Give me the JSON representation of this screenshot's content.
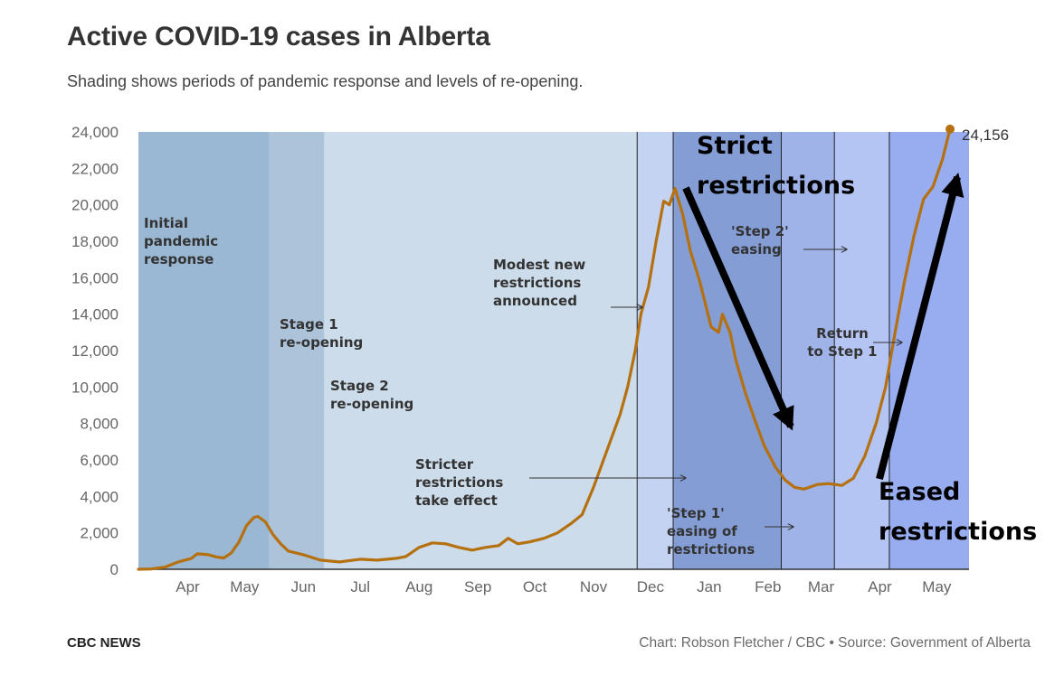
{
  "header": {
    "title": "Active COVID-19 cases in Alberta",
    "subtitle": "Shading shows periods of pandemic response and levels of re-opening."
  },
  "footer": {
    "brand": "CBC NEWS",
    "credit": "Chart: Robson Fletcher / CBC • Source: Government of Alberta"
  },
  "chart_data": {
    "type": "line",
    "title": "Active COVID-19 cases in Alberta",
    "subtitle": "Shading shows periods of pandemic response and levels of re-opening.",
    "xlabel": "",
    "ylabel": "",
    "ylim": [
      0,
      24000
    ],
    "xlim": [
      "2020-03-06",
      "2021-05-18"
    ],
    "grid": false,
    "y_ticks": [
      {
        "value": 0,
        "label": "0"
      },
      {
        "value": 2000,
        "label": "2,000"
      },
      {
        "value": 4000,
        "label": "4,000"
      },
      {
        "value": 6000,
        "label": "6,000"
      },
      {
        "value": 8000,
        "label": "8,000"
      },
      {
        "value": 10000,
        "label": "10,000"
      },
      {
        "value": 12000,
        "label": "12,000"
      },
      {
        "value": 14000,
        "label": "14,000"
      },
      {
        "value": 16000,
        "label": "16,000"
      },
      {
        "value": 18000,
        "label": "18,000"
      },
      {
        "value": 20000,
        "label": "20,000"
      },
      {
        "value": 22000,
        "label": "22,000"
      },
      {
        "value": 24000,
        "label": "24,000"
      }
    ],
    "x_ticks": [
      {
        "date": "2020-04-01",
        "label": "Apr"
      },
      {
        "date": "2020-05-01",
        "label": "May"
      },
      {
        "date": "2020-06-01",
        "label": "Jun"
      },
      {
        "date": "2020-07-01",
        "label": "Jul"
      },
      {
        "date": "2020-08-01",
        "label": "Aug"
      },
      {
        "date": "2020-09-01",
        "label": "Sep"
      },
      {
        "date": "2020-10-01",
        "label": "Oct"
      },
      {
        "date": "2020-11-01",
        "label": "Nov"
      },
      {
        "date": "2020-12-01",
        "label": "Dec"
      },
      {
        "date": "2021-01-01",
        "label": "Jan"
      },
      {
        "date": "2021-02-01",
        "label": "Feb"
      },
      {
        "date": "2021-03-01",
        "label": "Mar"
      },
      {
        "date": "2021-04-01",
        "label": "Apr"
      },
      {
        "date": "2021-05-01",
        "label": "May"
      }
    ],
    "periods": [
      {
        "start": "2020-03-06",
        "end": "2020-05-14",
        "color": "#9ab8d3"
      },
      {
        "start": "2020-05-14",
        "end": "2020-06-12",
        "color": "#adc3da"
      },
      {
        "start": "2020-06-12",
        "end": "2020-11-24",
        "color": "#cddcea"
      },
      {
        "start": "2020-11-24",
        "end": "2020-12-13",
        "color": "#c5d3f2"
      },
      {
        "start": "2020-12-13",
        "end": "2021-02-08",
        "color": "#859dd5"
      },
      {
        "start": "2021-02-08",
        "end": "2021-03-08",
        "color": "#a0b3e8"
      },
      {
        "start": "2021-03-08",
        "end": "2021-04-06",
        "color": "#b4c4f3"
      },
      {
        "start": "2021-04-06",
        "end": "2021-05-18",
        "color": "#98acf0"
      }
    ],
    "period_lines": [
      "2020-11-24",
      "2020-12-13",
      "2021-02-08",
      "2021-03-08",
      "2021-04-06"
    ],
    "series": [
      {
        "color": "#b5700f",
        "points": [
          [
            "2020-03-06",
            0
          ],
          [
            "2020-03-13",
            20
          ],
          [
            "2020-03-20",
            120
          ],
          [
            "2020-03-27",
            400
          ],
          [
            "2020-04-03",
            600
          ],
          [
            "2020-04-06",
            850
          ],
          [
            "2020-04-12",
            800
          ],
          [
            "2020-04-16",
            680
          ],
          [
            "2020-04-20",
            620
          ],
          [
            "2020-04-24",
            900
          ],
          [
            "2020-04-28",
            1500
          ],
          [
            "2020-05-02",
            2400
          ],
          [
            "2020-05-06",
            2850
          ],
          [
            "2020-05-08",
            2900
          ],
          [
            "2020-05-12",
            2600
          ],
          [
            "2020-05-16",
            1900
          ],
          [
            "2020-05-20",
            1400
          ],
          [
            "2020-05-24",
            1000
          ],
          [
            "2020-06-01",
            800
          ],
          [
            "2020-06-10",
            500
          ],
          [
            "2020-06-20",
            400
          ],
          [
            "2020-07-01",
            550
          ],
          [
            "2020-07-10",
            500
          ],
          [
            "2020-07-20",
            600
          ],
          [
            "2020-07-25",
            700
          ],
          [
            "2020-08-01",
            1200
          ],
          [
            "2020-08-08",
            1450
          ],
          [
            "2020-08-15",
            1400
          ],
          [
            "2020-08-22",
            1200
          ],
          [
            "2020-08-29",
            1050
          ],
          [
            "2020-09-05",
            1200
          ],
          [
            "2020-09-12",
            1300
          ],
          [
            "2020-09-17",
            1700
          ],
          [
            "2020-09-22",
            1400
          ],
          [
            "2020-09-28",
            1500
          ],
          [
            "2020-10-06",
            1700
          ],
          [
            "2020-10-13",
            2000
          ],
          [
            "2020-10-20",
            2500
          ],
          [
            "2020-10-26",
            3000
          ],
          [
            "2020-11-01",
            4500
          ],
          [
            "2020-11-08",
            6500
          ],
          [
            "2020-11-15",
            8500
          ],
          [
            "2020-11-19",
            10000
          ],
          [
            "2020-11-23",
            12000
          ],
          [
            "2020-11-26",
            14000
          ],
          [
            "2020-11-30",
            15500
          ],
          [
            "2020-12-04",
            18000
          ],
          [
            "2020-12-08",
            20200
          ],
          [
            "2020-12-11",
            20000
          ],
          [
            "2020-12-14",
            20900
          ],
          [
            "2020-12-18",
            19500
          ],
          [
            "2020-12-22",
            17500
          ],
          [
            "2020-12-27",
            15800
          ],
          [
            "2021-01-02",
            13300
          ],
          [
            "2021-01-06",
            13000
          ],
          [
            "2021-01-08",
            14000
          ],
          [
            "2021-01-12",
            13000
          ],
          [
            "2021-01-15",
            11500
          ],
          [
            "2021-01-20",
            9700
          ],
          [
            "2021-01-25",
            8200
          ],
          [
            "2021-01-30",
            6800
          ],
          [
            "2021-02-05",
            5600
          ],
          [
            "2021-02-10",
            4900
          ],
          [
            "2021-02-15",
            4500
          ],
          [
            "2021-02-20",
            4400
          ],
          [
            "2021-02-27",
            4650
          ],
          [
            "2021-03-05",
            4700
          ],
          [
            "2021-03-12",
            4600
          ],
          [
            "2021-03-18",
            5000
          ],
          [
            "2021-03-24",
            6200
          ],
          [
            "2021-03-30",
            8000
          ],
          [
            "2021-04-04",
            10000
          ],
          [
            "2021-04-09",
            13000
          ],
          [
            "2021-04-14",
            15800
          ],
          [
            "2021-04-19",
            18300
          ],
          [
            "2021-04-24",
            20300
          ],
          [
            "2021-04-29",
            21000
          ],
          [
            "2021-05-04",
            22500
          ],
          [
            "2021-05-08",
            24156
          ]
        ]
      }
    ],
    "end_label": {
      "date": "2021-05-08",
      "value": 24156,
      "text": "24,156"
    },
    "annotations": [
      {
        "lines": [
          "Initial",
          "pandemic",
          "response"
        ]
      },
      {
        "lines": [
          "Stage 1",
          "re-opening"
        ]
      },
      {
        "lines": [
          "Stage 2",
          "re-opening"
        ]
      },
      {
        "lines": [
          "Stricter",
          "restrictions",
          "take effect"
        ]
      },
      {
        "lines": [
          "Modest new",
          "restrictions",
          "announced"
        ]
      },
      {
        "lines": [
          "'Step 1'",
          "easing of",
          "restrictions"
        ]
      },
      {
        "lines": [
          "'Step 2'",
          "easing"
        ]
      },
      {
        "lines": [
          "Return",
          "to Step 1"
        ]
      }
    ],
    "overlay_labels": [
      {
        "lines": [
          "Strict",
          "restrictions"
        ]
      },
      {
        "lines": [
          "Eased",
          "restrictions"
        ]
      }
    ]
  }
}
